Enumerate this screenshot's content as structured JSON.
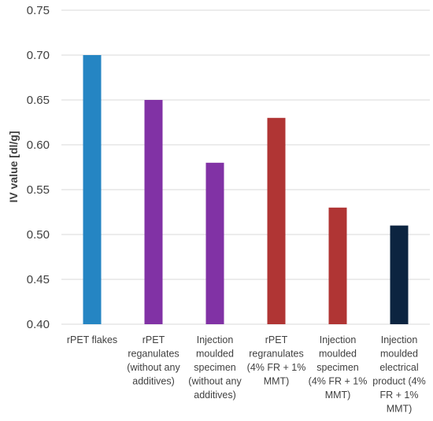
{
  "chart_data": {
    "type": "bar",
    "title": "",
    "xlabel": "",
    "ylabel": "IV value [dl/g]",
    "ylim": [
      0.4,
      0.75
    ],
    "yticks": [
      "0.40",
      "0.45",
      "0.50",
      "0.55",
      "0.60",
      "0.65",
      "0.70",
      "0.75"
    ],
    "grid": true,
    "legend": "none",
    "categories": [
      [
        "rPET flakes"
      ],
      [
        "rPET",
        "reganulates",
        "(without any",
        "additives)"
      ],
      [
        "Injection",
        "moulded",
        "specimen",
        "(without any",
        "additives)"
      ],
      [
        "rPET",
        "regranulates",
        "(4% FR + 1%",
        "MMT)"
      ],
      [
        "Injection",
        "moulded",
        "specimen",
        "(4% FR + 1%",
        "MMT)"
      ],
      [
        "Injection",
        "moulded",
        "electrical",
        "product (4%",
        "FR + 1%",
        "MMT)"
      ]
    ],
    "values": [
      0.7,
      0.65,
      0.58,
      0.63,
      0.53,
      0.51
    ],
    "colors": [
      "#2585C3",
      "#8132A5",
      "#8132A5",
      "#B03534",
      "#B03534",
      "#0C2440"
    ],
    "gridline_color": "#D9D9D9"
  }
}
